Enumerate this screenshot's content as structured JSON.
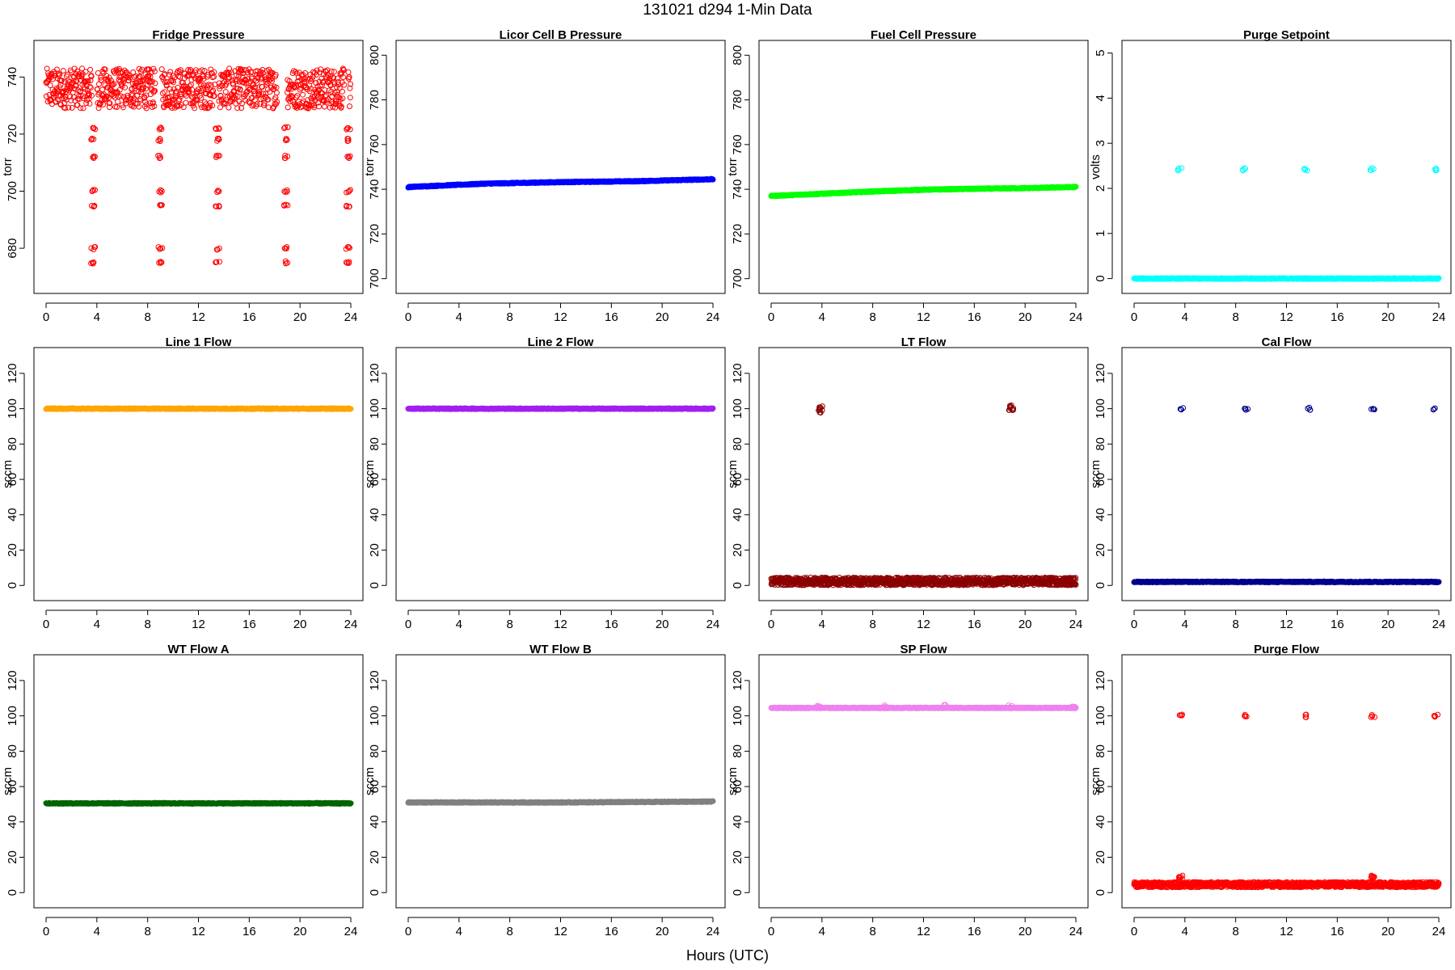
{
  "figure": {
    "title": "131021    d294    1-Min Data",
    "xlabel": "Hours (UTC)"
  },
  "chart_data": [
    {
      "type": "scatter",
      "title": "Fridge Pressure",
      "ylabel": "torr",
      "color": "#ff0000",
      "xlim": [
        0,
        24
      ],
      "ylim": [
        667,
        750
      ],
      "xticks": [
        0,
        4,
        8,
        12,
        16,
        20,
        24
      ],
      "yticks": [
        680,
        700,
        720,
        740
      ],
      "series": [
        {
          "kind": "band",
          "x_range": [
            0,
            24
          ],
          "y_center": 736,
          "y_spread": 7,
          "density": 1.4,
          "gaps": [
            [
              3.6,
              4.0
            ],
            [
              8.6,
              9.1
            ],
            [
              13.3,
              13.6
            ],
            [
              18.2,
              19.0
            ],
            [
              23.5,
              23.8
            ]
          ]
        },
        {
          "kind": "clusters",
          "centers": [
            3.7,
            9.0,
            13.5,
            18.9,
            23.8
          ],
          "y_values": [
            718,
            700,
            695,
            680,
            675,
            722,
            712
          ]
        }
      ]
    },
    {
      "type": "scatter",
      "title": "Licor Cell B Pressure",
      "ylabel": "torr",
      "color": "#0000ff",
      "xlim": [
        0,
        24
      ],
      "ylim": [
        697,
        803
      ],
      "xticks": [
        0,
        4,
        8,
        12,
        16,
        20,
        24
      ],
      "yticks": [
        700,
        720,
        740,
        760,
        780,
        800
      ],
      "series": [
        {
          "kind": "line",
          "x": [
            0,
            6,
            12,
            18,
            24
          ],
          "y": [
            741,
            742.5,
            743.2,
            743.6,
            744.5
          ]
        }
      ]
    },
    {
      "type": "scatter",
      "title": "Fuel Cell Pressure",
      "ylabel": "torr",
      "color": "#00ff00",
      "xlim": [
        0,
        24
      ],
      "ylim": [
        697,
        803
      ],
      "xticks": [
        0,
        4,
        8,
        12,
        16,
        20,
        24
      ],
      "yticks": [
        700,
        720,
        740,
        760,
        780,
        800
      ],
      "series": [
        {
          "kind": "line",
          "x": [
            0,
            4,
            8,
            12,
            16,
            20,
            24
          ],
          "y": [
            737,
            738,
            739,
            739.8,
            740.2,
            740.5,
            741
          ]
        }
      ]
    },
    {
      "type": "scatter",
      "title": "Purge Setpoint",
      "ylabel": "volts",
      "color": "#00ffff",
      "xlim": [
        0,
        24
      ],
      "ylim": [
        -0.15,
        5.1
      ],
      "xticks": [
        0,
        4,
        8,
        12,
        16,
        20,
        24
      ],
      "yticks": [
        0,
        1,
        2,
        3,
        4,
        5
      ],
      "series": [
        {
          "kind": "line",
          "x": [
            0,
            24
          ],
          "y": [
            0,
            0
          ]
        },
        {
          "kind": "clusters",
          "centers": [
            3.6,
            8.7,
            13.5,
            18.7,
            23.7
          ],
          "y_values": [
            2.42
          ]
        }
      ]
    },
    {
      "type": "scatter",
      "title": "Line 1 Flow",
      "ylabel": "sccm",
      "color": "#ffa500",
      "xlim": [
        0,
        24
      ],
      "ylim": [
        -4,
        130
      ],
      "xticks": [
        0,
        4,
        8,
        12,
        16,
        20,
        24
      ],
      "yticks": [
        0,
        20,
        40,
        60,
        80,
        100,
        120
      ],
      "series": [
        {
          "kind": "line",
          "x": [
            0,
            24
          ],
          "y": [
            100,
            100
          ]
        }
      ]
    },
    {
      "type": "scatter",
      "title": "Line 2 Flow",
      "ylabel": "sccm",
      "color": "#a020f0",
      "xlim": [
        0,
        24
      ],
      "ylim": [
        -4,
        130
      ],
      "xticks": [
        0,
        4,
        8,
        12,
        16,
        20,
        24
      ],
      "yticks": [
        0,
        20,
        40,
        60,
        80,
        100,
        120
      ],
      "series": [
        {
          "kind": "line",
          "x": [
            0,
            24
          ],
          "y": [
            100,
            100
          ]
        }
      ]
    },
    {
      "type": "scatter",
      "title": "LT Flow",
      "ylabel": "sccm",
      "color": "#8b0000",
      "xlim": [
        0,
        24
      ],
      "ylim": [
        -4,
        130
      ],
      "xticks": [
        0,
        4,
        8,
        12,
        16,
        20,
        24
      ],
      "yticks": [
        0,
        20,
        40,
        60,
        80,
        100,
        120
      ],
      "series": [
        {
          "kind": "band",
          "x_range": [
            0,
            24
          ],
          "y_center": 2.3,
          "y_spread": 2.2,
          "density": 1.6,
          "gaps": []
        },
        {
          "kind": "clusters",
          "centers": [
            3.9,
            18.9
          ],
          "y_values": [
            100,
            98.5,
            101.2
          ]
        }
      ]
    },
    {
      "type": "scatter",
      "title": "Cal Flow",
      "ylabel": "sccm",
      "color": "#00008b",
      "xlim": [
        0,
        24
      ],
      "ylim": [
        -4,
        130
      ],
      "xticks": [
        0,
        4,
        8,
        12,
        16,
        20,
        24
      ],
      "yticks": [
        0,
        20,
        40,
        60,
        80,
        100,
        120
      ],
      "series": [
        {
          "kind": "line",
          "x": [
            0,
            24
          ],
          "y": [
            2,
            2
          ]
        },
        {
          "kind": "clusters",
          "centers": [
            3.8,
            8.8,
            13.7,
            18.8,
            23.7
          ],
          "y_values": [
            100
          ]
        }
      ]
    },
    {
      "type": "scatter",
      "title": "WT Flow A",
      "ylabel": "sccm",
      "color": "#006400",
      "xlim": [
        0,
        24
      ],
      "ylim": [
        -4,
        130
      ],
      "xticks": [
        0,
        4,
        8,
        12,
        16,
        20,
        24
      ],
      "yticks": [
        0,
        20,
        40,
        60,
        80,
        100,
        120
      ],
      "series": [
        {
          "kind": "line",
          "x": [
            0,
            24
          ],
          "y": [
            50.5,
            50.5
          ]
        }
      ]
    },
    {
      "type": "scatter",
      "title": "WT Flow B",
      "ylabel": "sccm",
      "color": "#808080",
      "xlim": [
        0,
        24
      ],
      "ylim": [
        -4,
        130
      ],
      "xticks": [
        0,
        4,
        8,
        12,
        16,
        20,
        24
      ],
      "yticks": [
        0,
        20,
        40,
        60,
        80,
        100,
        120
      ],
      "series": [
        {
          "kind": "line",
          "x": [
            0,
            12,
            24
          ],
          "y": [
            51,
            51,
            51.5
          ]
        }
      ]
    },
    {
      "type": "scatter",
      "title": "SP Flow",
      "ylabel": "sccm",
      "color": "#ee82ee",
      "xlim": [
        0,
        24
      ],
      "ylim": [
        -4,
        130
      ],
      "xticks": [
        0,
        4,
        8,
        12,
        16,
        20,
        24
      ],
      "yticks": [
        0,
        20,
        40,
        60,
        80,
        100,
        120
      ],
      "series": [
        {
          "kind": "line",
          "x": [
            0,
            24
          ],
          "y": [
            104.5,
            104.5
          ]
        },
        {
          "kind": "clusters",
          "centers": [
            3.8,
            8.9,
            13.7,
            18.8,
            23.8
          ],
          "y_values": [
            105.5
          ]
        }
      ]
    },
    {
      "type": "scatter",
      "title": "Purge Flow",
      "ylabel": "sccm",
      "color": "#ff0000",
      "xlim": [
        0,
        24
      ],
      "ylim": [
        -4,
        130
      ],
      "xticks": [
        0,
        4,
        8,
        12,
        16,
        20,
        24
      ],
      "yticks": [
        0,
        20,
        40,
        60,
        80,
        100,
        120
      ],
      "series": [
        {
          "kind": "band",
          "x_range": [
            0,
            24
          ],
          "y_center": 4.5,
          "y_spread": 1.5,
          "density": 1.6,
          "gaps": []
        },
        {
          "kind": "clusters",
          "centers": [
            3.7,
            8.7,
            13.6,
            18.8,
            23.8
          ],
          "y_values": [
            100
          ]
        },
        {
          "kind": "clusters",
          "centers": [
            3.7,
            18.8
          ],
          "y_values": [
            8,
            9
          ]
        }
      ]
    }
  ]
}
